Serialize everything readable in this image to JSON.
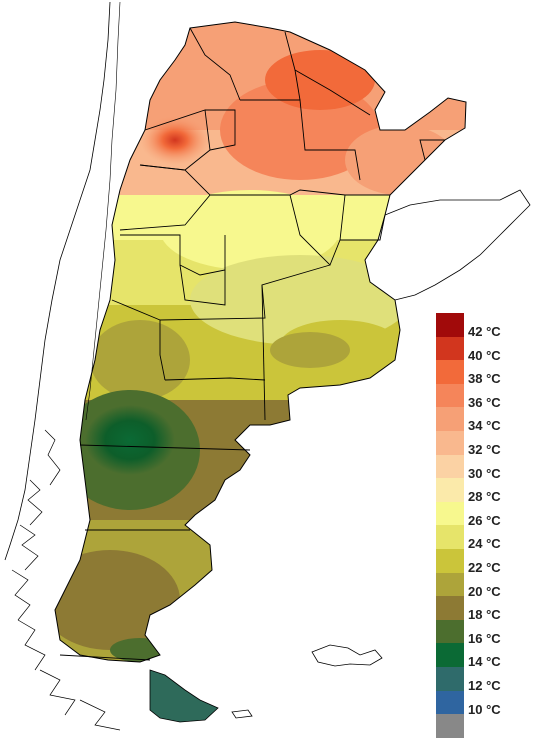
{
  "map": {
    "colors": {
      "ocean": "#ffffff",
      "outline": "#000000",
      "region_hot": "#f08a5a",
      "region_warm": "#f7ad7a",
      "region_mild": "#f2f0a0",
      "region_temperate": "#dfe07a",
      "region_cool": "#c9c546",
      "region_cold": "#a89a3c",
      "region_colder": "#8b7a35",
      "region_coldest": "#3f6b2f",
      "core_green": "#0d5e2a",
      "tierra_green": "#2e6a5a"
    }
  },
  "legend": {
    "items": [
      {
        "label": "42 °C",
        "color": "#a10a0a"
      },
      {
        "label": "40 °C",
        "color": "#d2361e"
      },
      {
        "label": "38 °C",
        "color": "#f26a3a"
      },
      {
        "label": "36 °C",
        "color": "#f5855a"
      },
      {
        "label": "34 °C",
        "color": "#f6a076"
      },
      {
        "label": "32 °C",
        "color": "#f9b88e"
      },
      {
        "label": "30 °C",
        "color": "#fbd2a4"
      },
      {
        "label": "28 °C",
        "color": "#fbeaaa"
      },
      {
        "label": "26 °C",
        "color": "#f7f88e"
      },
      {
        "label": "24 °C",
        "color": "#e6e46a"
      },
      {
        "label": "22 °C",
        "color": "#cbc53a"
      },
      {
        "label": "20 °C",
        "color": "#ada43a"
      },
      {
        "label": "18 °C",
        "color": "#8d7a34"
      },
      {
        "label": "16 °C",
        "color": "#4c6e2e"
      },
      {
        "label": "14 °C",
        "color": "#0b6a35"
      },
      {
        "label": "12 °C",
        "color": "#2f6b6b"
      },
      {
        "label": "10 °C",
        "color": "#2f65a0"
      },
      {
        "label": "",
        "color": "#888888"
      }
    ]
  }
}
